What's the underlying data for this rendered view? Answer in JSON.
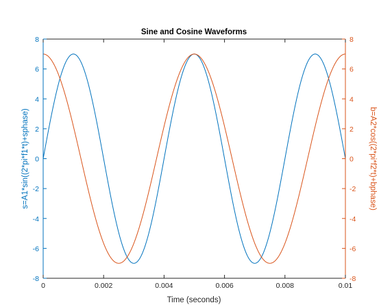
{
  "chart_data": {
    "type": "line",
    "title": "Sine and Cosine Waveforms",
    "xlabel": "Time (seconds)",
    "ylabel_left": "s=A1*sin((2*pi*f1*t)+sphase)",
    "ylabel_right": "b=A2*cos((2*pi*f2*t)+bphase)",
    "xlim": [
      0,
      0.01
    ],
    "ylim_left": [
      -8,
      8
    ],
    "ylim_right": [
      -8,
      8
    ],
    "x_ticks": [
      0,
      0.002,
      0.004,
      0.006,
      0.008,
      0.01
    ],
    "x_tick_labels": [
      "0",
      "0.002",
      "0.004",
      "0.006",
      "0.008",
      "0.01"
    ],
    "y_ticks": [
      -8,
      -6,
      -4,
      -2,
      0,
      2,
      4,
      6,
      8
    ],
    "y_tick_labels": [
      "-8",
      "-6",
      "-4",
      "-2",
      "0",
      "2",
      "4",
      "6",
      "8"
    ],
    "grid": false,
    "colors": {
      "left_axis": "#0072BD",
      "right_axis": "#D95319",
      "frame": "#262626",
      "title": "#000000",
      "xlabel": "#262626"
    },
    "series": [
      {
        "axis": "left",
        "color": "#0072BD",
        "function": "sin",
        "amplitude": 7,
        "frequency_hz": 250,
        "phase": 0
      },
      {
        "axis": "right",
        "color": "#D95319",
        "function": "cos",
        "amplitude": 7,
        "frequency_hz": 200,
        "phase": 0
      }
    ]
  }
}
